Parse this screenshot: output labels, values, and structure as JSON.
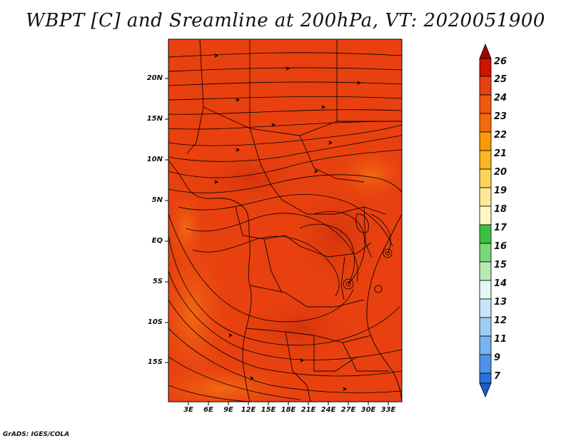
{
  "title": "WBPT [C] and Sreamline at 200hPa, VT: 2020051900",
  "credit": "GrADS: IGES/COLA",
  "map": {
    "field_color": "#e8410f",
    "lat_labels": [
      "20N",
      "15N",
      "10N",
      "5N",
      "EQ",
      "5S",
      "10S",
      "15S"
    ],
    "lon_labels": [
      "3E",
      "6E",
      "9E",
      "12E",
      "15E",
      "18E",
      "21E",
      "24E",
      "27E",
      "30E",
      "33E"
    ]
  },
  "colorbar": {
    "labels": [
      "26",
      "25",
      "24",
      "23",
      "22",
      "21",
      "20",
      "19",
      "18",
      "17",
      "16",
      "15",
      "14",
      "13",
      "12",
      "11",
      "9",
      "7"
    ],
    "colors": [
      "#a50000",
      "#cc1400",
      "#e8410f",
      "#f56a0a",
      "#fa9a05",
      "#f9b726",
      "#fcd45c",
      "#fde99a",
      "#fff7c8",
      "#3fbf3f",
      "#7ad77a",
      "#b8eab4",
      "#e6f6f5",
      "#c8e4f8",
      "#a0cdf5",
      "#78b2f0",
      "#4f93e8",
      "#2a70dc",
      "#1e5ad0"
    ]
  }
}
